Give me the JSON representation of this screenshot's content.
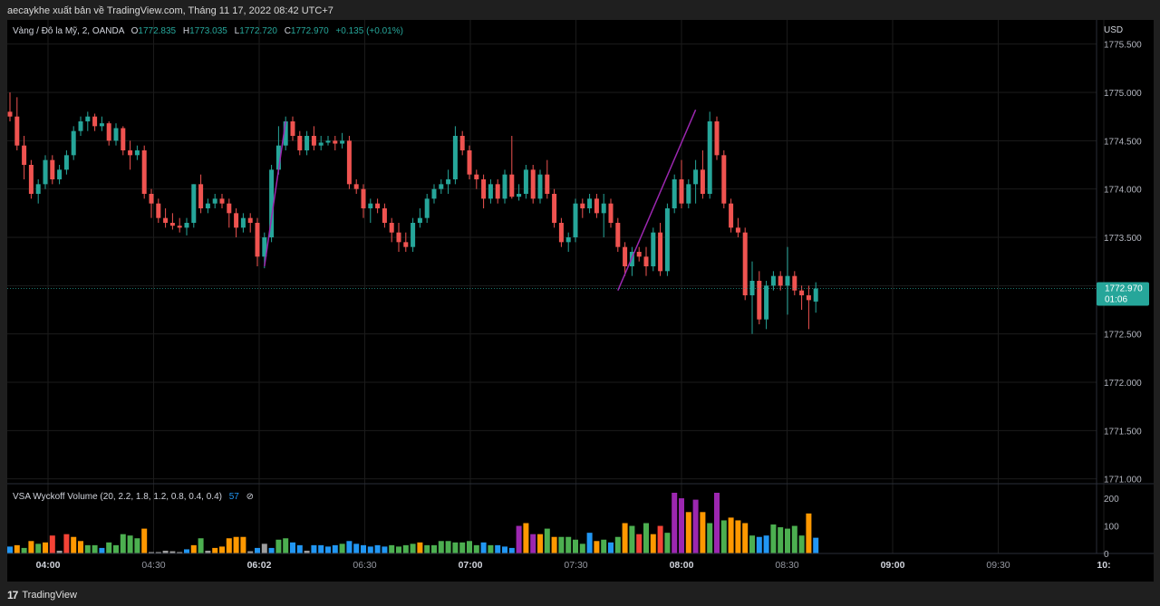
{
  "caption": "aecaykhe xuất bản về TradingView.com, Tháng 11 17, 2022 08:42 UTC+7",
  "footer": {
    "brand": "TradingView",
    "logo_glyph": "17"
  },
  "legend": {
    "symbol": "Vàng / Đô la Mỹ, 2, OANDA",
    "o_label": "O",
    "o_value": "1772.835",
    "h_label": "H",
    "h_value": "1773.035",
    "l_label": "L",
    "l_value": "1772.720",
    "c_label": "C",
    "c_value": "1772.970",
    "change": "+0.135 (+0.01%)"
  },
  "volume_legend": {
    "label": "VSA Wyckoff Volume (20, 2.2, 1.8, 1.2, 0.8, 0.4, 0.4)",
    "value": "57",
    "symbol": "⊘"
  },
  "price_axis": {
    "currency": "USD",
    "ticks": [
      "1775.500",
      "1775.000",
      "1774.500",
      "1774.000",
      "1773.500",
      "1773.000",
      "1772.500",
      "1772.000",
      "1771.500",
      "1771.000"
    ],
    "tick_values": [
      1775.5,
      1775.0,
      1774.5,
      1774.0,
      1773.5,
      1773.0,
      1772.5,
      1772.0,
      1771.5,
      1771.0
    ],
    "last_price_label": "1772.970",
    "countdown": "01:06"
  },
  "volume_axis": {
    "ticks": [
      "200",
      "100",
      "0"
    ],
    "tick_values": [
      200,
      100,
      0
    ]
  },
  "time_axis": {
    "labels": [
      "04:00",
      "04:30",
      "06:02",
      "06:30",
      "07:00",
      "07:30",
      "08:00",
      "08:30",
      "09:00",
      "09:30",
      "10:"
    ],
    "bold": [
      true,
      false,
      true,
      false,
      true,
      false,
      true,
      false,
      true,
      false,
      true
    ]
  },
  "colors": {
    "up": "#26a69a",
    "down": "#ef5350",
    "grid": "#1b1b1b",
    "trendline": "#9c27b0",
    "last_price_bg": "#26a69a",
    "vol_green": "#4caf50",
    "vol_blue": "#2196f3",
    "vol_orange": "#ff9800",
    "vol_red": "#f44336",
    "vol_purple": "#9c27b0",
    "vol_gray": "#9e9e9e"
  },
  "chart_data": {
    "type": "candlestick",
    "title": "Vàng / Đô la Mỹ, 2, OANDA",
    "ylabel": "USD",
    "ylim": [
      1770.95,
      1775.75
    ],
    "volume_ylim": [
      0,
      220
    ],
    "last_price": 1772.97,
    "candles": [
      {
        "o": 1774.8,
        "h": 1775.0,
        "l": 1774.7,
        "c": 1774.75,
        "v": 25
      },
      {
        "o": 1774.75,
        "h": 1774.95,
        "l": 1774.4,
        "c": 1774.45,
        "v": 30
      },
      {
        "o": 1774.45,
        "h": 1774.55,
        "l": 1774.1,
        "c": 1774.25,
        "v": 20
      },
      {
        "o": 1774.25,
        "h": 1774.3,
        "l": 1773.9,
        "c": 1773.95,
        "v": 45
      },
      {
        "o": 1773.95,
        "h": 1774.1,
        "l": 1773.85,
        "c": 1774.05,
        "v": 35
      },
      {
        "o": 1774.05,
        "h": 1774.35,
        "l": 1774.0,
        "c": 1774.3,
        "v": 40
      },
      {
        "o": 1774.3,
        "h": 1774.35,
        "l": 1774.05,
        "c": 1774.1,
        "v": 65
      },
      {
        "o": 1774.1,
        "h": 1774.25,
        "l": 1774.05,
        "c": 1774.2,
        "v": 10
      },
      {
        "o": 1774.2,
        "h": 1774.4,
        "l": 1774.15,
        "c": 1774.35,
        "v": 70
      },
      {
        "o": 1774.35,
        "h": 1774.65,
        "l": 1774.3,
        "c": 1774.6,
        "v": 60
      },
      {
        "o": 1774.6,
        "h": 1774.75,
        "l": 1774.55,
        "c": 1774.7,
        "v": 45
      },
      {
        "o": 1774.7,
        "h": 1774.8,
        "l": 1774.6,
        "c": 1774.75,
        "v": 30
      },
      {
        "o": 1774.75,
        "h": 1774.78,
        "l": 1774.6,
        "c": 1774.65,
        "v": 30
      },
      {
        "o": 1774.65,
        "h": 1774.75,
        "l": 1774.6,
        "c": 1774.68,
        "v": 20
      },
      {
        "o": 1774.68,
        "h": 1774.7,
        "l": 1774.45,
        "c": 1774.5,
        "v": 40
      },
      {
        "o": 1774.5,
        "h": 1774.68,
        "l": 1774.45,
        "c": 1774.63,
        "v": 30
      },
      {
        "o": 1774.63,
        "h": 1774.65,
        "l": 1774.35,
        "c": 1774.4,
        "v": 70
      },
      {
        "o": 1774.4,
        "h": 1774.5,
        "l": 1774.2,
        "c": 1774.35,
        "v": 65
      },
      {
        "o": 1774.35,
        "h": 1774.45,
        "l": 1774.3,
        "c": 1774.4,
        "v": 55
      },
      {
        "o": 1774.4,
        "h": 1774.45,
        "l": 1773.9,
        "c": 1773.95,
        "v": 90
      },
      {
        "o": 1773.95,
        "h": 1774.0,
        "l": 1773.7,
        "c": 1773.85,
        "v": 5
      },
      {
        "o": 1773.85,
        "h": 1773.9,
        "l": 1773.65,
        "c": 1773.7,
        "v": 5
      },
      {
        "o": 1773.7,
        "h": 1773.8,
        "l": 1773.6,
        "c": 1773.65,
        "v": 10
      },
      {
        "o": 1773.65,
        "h": 1773.75,
        "l": 1773.58,
        "c": 1773.62,
        "v": 8
      },
      {
        "o": 1773.62,
        "h": 1773.7,
        "l": 1773.55,
        "c": 1773.6,
        "v": 5
      },
      {
        "o": 1773.6,
        "h": 1773.7,
        "l": 1773.52,
        "c": 1773.65,
        "v": 15
      },
      {
        "o": 1773.65,
        "h": 1774.05,
        "l": 1773.6,
        "c": 1774.05,
        "v": 30
      },
      {
        "o": 1774.05,
        "h": 1774.15,
        "l": 1773.75,
        "c": 1773.8,
        "v": 55
      },
      {
        "o": 1773.8,
        "h": 1773.9,
        "l": 1773.75,
        "c": 1773.85,
        "v": 10
      },
      {
        "o": 1773.85,
        "h": 1773.95,
        "l": 1773.8,
        "c": 1773.9,
        "v": 20
      },
      {
        "o": 1773.9,
        "h": 1773.95,
        "l": 1773.8,
        "c": 1773.85,
        "v": 25
      },
      {
        "o": 1773.85,
        "h": 1773.9,
        "l": 1773.6,
        "c": 1773.75,
        "v": 55
      },
      {
        "o": 1773.75,
        "h": 1773.8,
        "l": 1773.5,
        "c": 1773.6,
        "v": 60
      },
      {
        "o": 1773.6,
        "h": 1773.75,
        "l": 1773.55,
        "c": 1773.7,
        "v": 60
      },
      {
        "o": 1773.7,
        "h": 1773.75,
        "l": 1773.55,
        "c": 1773.65,
        "v": 8
      },
      {
        "o": 1773.65,
        "h": 1773.7,
        "l": 1773.2,
        "c": 1773.3,
        "v": 20
      },
      {
        "o": 1773.3,
        "h": 1773.55,
        "l": 1773.18,
        "c": 1773.5,
        "v": 35
      },
      {
        "o": 1773.5,
        "h": 1774.25,
        "l": 1773.45,
        "c": 1774.2,
        "v": 20
      },
      {
        "o": 1774.2,
        "h": 1774.65,
        "l": 1774.15,
        "c": 1774.45,
        "v": 50
      },
      {
        "o": 1774.45,
        "h": 1774.75,
        "l": 1774.4,
        "c": 1774.7,
        "v": 55
      },
      {
        "o": 1774.7,
        "h": 1774.75,
        "l": 1774.5,
        "c": 1774.55,
        "v": 40
      },
      {
        "o": 1774.55,
        "h": 1774.6,
        "l": 1774.35,
        "c": 1774.4,
        "v": 30
      },
      {
        "o": 1774.4,
        "h": 1774.6,
        "l": 1774.35,
        "c": 1774.55,
        "v": 10
      },
      {
        "o": 1774.55,
        "h": 1774.65,
        "l": 1774.4,
        "c": 1774.45,
        "v": 30
      },
      {
        "o": 1774.45,
        "h": 1774.55,
        "l": 1774.4,
        "c": 1774.48,
        "v": 30
      },
      {
        "o": 1774.48,
        "h": 1774.55,
        "l": 1774.45,
        "c": 1774.5,
        "v": 25
      },
      {
        "o": 1774.5,
        "h": 1774.55,
        "l": 1774.4,
        "c": 1774.47,
        "v": 30
      },
      {
        "o": 1774.47,
        "h": 1774.58,
        "l": 1774.42,
        "c": 1774.5,
        "v": 35
      },
      {
        "o": 1774.5,
        "h": 1774.55,
        "l": 1774.0,
        "c": 1774.05,
        "v": 45
      },
      {
        "o": 1774.05,
        "h": 1774.1,
        "l": 1773.95,
        "c": 1774.0,
        "v": 35
      },
      {
        "o": 1774.0,
        "h": 1774.05,
        "l": 1773.7,
        "c": 1773.8,
        "v": 30
      },
      {
        "o": 1773.8,
        "h": 1773.9,
        "l": 1773.65,
        "c": 1773.85,
        "v": 25
      },
      {
        "o": 1773.85,
        "h": 1773.9,
        "l": 1773.75,
        "c": 1773.8,
        "v": 30
      },
      {
        "o": 1773.8,
        "h": 1773.85,
        "l": 1773.6,
        "c": 1773.65,
        "v": 25
      },
      {
        "o": 1773.65,
        "h": 1773.7,
        "l": 1773.45,
        "c": 1773.55,
        "v": 30
      },
      {
        "o": 1773.55,
        "h": 1773.65,
        "l": 1773.35,
        "c": 1773.45,
        "v": 25
      },
      {
        "o": 1773.45,
        "h": 1773.55,
        "l": 1773.35,
        "c": 1773.4,
        "v": 30
      },
      {
        "o": 1773.4,
        "h": 1773.7,
        "l": 1773.35,
        "c": 1773.65,
        "v": 35
      },
      {
        "o": 1773.65,
        "h": 1773.8,
        "l": 1773.6,
        "c": 1773.7,
        "v": 40
      },
      {
        "o": 1773.7,
        "h": 1773.95,
        "l": 1773.65,
        "c": 1773.9,
        "v": 30
      },
      {
        "o": 1773.9,
        "h": 1774.05,
        "l": 1773.85,
        "c": 1774.0,
        "v": 30
      },
      {
        "o": 1774.0,
        "h": 1774.1,
        "l": 1773.95,
        "c": 1774.05,
        "v": 45
      },
      {
        "o": 1774.05,
        "h": 1774.2,
        "l": 1773.95,
        "c": 1774.1,
        "v": 45
      },
      {
        "o": 1774.1,
        "h": 1774.65,
        "l": 1774.05,
        "c": 1774.55,
        "v": 40
      },
      {
        "o": 1774.55,
        "h": 1774.6,
        "l": 1774.35,
        "c": 1774.4,
        "v": 40
      },
      {
        "o": 1774.4,
        "h": 1774.45,
        "l": 1774.1,
        "c": 1774.15,
        "v": 45
      },
      {
        "o": 1774.15,
        "h": 1774.2,
        "l": 1774.0,
        "c": 1774.1,
        "v": 30
      },
      {
        "o": 1774.1,
        "h": 1774.15,
        "l": 1773.8,
        "c": 1773.9,
        "v": 40
      },
      {
        "o": 1773.9,
        "h": 1774.1,
        "l": 1773.85,
        "c": 1774.05,
        "v": 30
      },
      {
        "o": 1774.05,
        "h": 1774.1,
        "l": 1773.85,
        "c": 1773.9,
        "v": 30
      },
      {
        "o": 1773.9,
        "h": 1774.2,
        "l": 1773.85,
        "c": 1774.15,
        "v": 25
      },
      {
        "o": 1774.15,
        "h": 1774.55,
        "l": 1773.9,
        "c": 1773.92,
        "v": 20
      },
      {
        "o": 1773.92,
        "h": 1774.05,
        "l": 1773.88,
        "c": 1773.95,
        "v": 100
      },
      {
        "o": 1773.95,
        "h": 1774.25,
        "l": 1773.9,
        "c": 1774.2,
        "v": 110
      },
      {
        "o": 1774.2,
        "h": 1774.25,
        "l": 1773.85,
        "c": 1773.9,
        "v": 70
      },
      {
        "o": 1773.9,
        "h": 1774.2,
        "l": 1773.85,
        "c": 1774.15,
        "v": 70
      },
      {
        "o": 1774.15,
        "h": 1774.3,
        "l": 1773.9,
        "c": 1773.95,
        "v": 90
      },
      {
        "o": 1773.95,
        "h": 1774.0,
        "l": 1773.6,
        "c": 1773.65,
        "v": 60
      },
      {
        "o": 1773.65,
        "h": 1773.7,
        "l": 1773.4,
        "c": 1773.45,
        "v": 60
      },
      {
        "o": 1773.45,
        "h": 1773.55,
        "l": 1773.35,
        "c": 1773.5,
        "v": 60
      },
      {
        "o": 1773.5,
        "h": 1773.9,
        "l": 1773.45,
        "c": 1773.85,
        "v": 50
      },
      {
        "o": 1773.85,
        "h": 1773.9,
        "l": 1773.7,
        "c": 1773.8,
        "v": 35
      },
      {
        "o": 1773.8,
        "h": 1773.95,
        "l": 1773.75,
        "c": 1773.9,
        "v": 75
      },
      {
        "o": 1773.9,
        "h": 1773.95,
        "l": 1773.7,
        "c": 1773.75,
        "v": 45
      },
      {
        "o": 1773.75,
        "h": 1773.95,
        "l": 1773.5,
        "c": 1773.85,
        "v": 50
      },
      {
        "o": 1773.85,
        "h": 1773.9,
        "l": 1773.6,
        "c": 1773.65,
        "v": 40
      },
      {
        "o": 1773.65,
        "h": 1773.7,
        "l": 1773.35,
        "c": 1773.4,
        "v": 60
      },
      {
        "o": 1773.4,
        "h": 1773.45,
        "l": 1773.1,
        "c": 1773.2,
        "v": 110
      },
      {
        "o": 1773.2,
        "h": 1773.4,
        "l": 1773.1,
        "c": 1773.35,
        "v": 100
      },
      {
        "o": 1773.35,
        "h": 1773.4,
        "l": 1773.25,
        "c": 1773.3,
        "v": 70
      },
      {
        "o": 1773.3,
        "h": 1773.4,
        "l": 1773.1,
        "c": 1773.2,
        "v": 110
      },
      {
        "o": 1773.2,
        "h": 1773.6,
        "l": 1773.15,
        "c": 1773.55,
        "v": 70
      },
      {
        "o": 1773.55,
        "h": 1773.65,
        "l": 1773.1,
        "c": 1773.15,
        "v": 100
      },
      {
        "o": 1773.15,
        "h": 1773.85,
        "l": 1773.1,
        "c": 1773.8,
        "v": 75
      },
      {
        "o": 1773.8,
        "h": 1774.15,
        "l": 1773.75,
        "c": 1774.1,
        "v": 220
      },
      {
        "o": 1774.1,
        "h": 1774.3,
        "l": 1773.8,
        "c": 1773.85,
        "v": 200
      },
      {
        "o": 1773.85,
        "h": 1774.1,
        "l": 1773.8,
        "c": 1774.05,
        "v": 150
      },
      {
        "o": 1774.05,
        "h": 1774.3,
        "l": 1773.85,
        "c": 1774.2,
        "v": 195
      },
      {
        "o": 1774.2,
        "h": 1774.4,
        "l": 1773.9,
        "c": 1773.95,
        "v": 150
      },
      {
        "o": 1773.95,
        "h": 1774.8,
        "l": 1773.9,
        "c": 1774.7,
        "v": 110
      },
      {
        "o": 1774.7,
        "h": 1774.75,
        "l": 1774.3,
        "c": 1774.35,
        "v": 220
      },
      {
        "o": 1774.35,
        "h": 1774.4,
        "l": 1773.8,
        "c": 1773.85,
        "v": 120
      },
      {
        "o": 1773.85,
        "h": 1773.9,
        "l": 1773.55,
        "c": 1773.6,
        "v": 130
      },
      {
        "o": 1773.6,
        "h": 1773.7,
        "l": 1773.5,
        "c": 1773.55,
        "v": 120
      },
      {
        "o": 1773.55,
        "h": 1773.6,
        "l": 1772.85,
        "c": 1772.9,
        "v": 110
      },
      {
        "o": 1772.9,
        "h": 1773.25,
        "l": 1772.5,
        "c": 1773.05,
        "v": 65
      },
      {
        "o": 1773.05,
        "h": 1773.15,
        "l": 1772.6,
        "c": 1772.65,
        "v": 60
      },
      {
        "o": 1772.65,
        "h": 1773.05,
        "l": 1772.55,
        "c": 1773.0,
        "v": 65
      },
      {
        "o": 1773.0,
        "h": 1773.15,
        "l": 1772.95,
        "c": 1773.1,
        "v": 105
      },
      {
        "o": 1773.1,
        "h": 1773.15,
        "l": 1772.95,
        "c": 1773.0,
        "v": 95
      },
      {
        "o": 1773.0,
        "h": 1773.4,
        "l": 1772.7,
        "c": 1773.1,
        "v": 90
      },
      {
        "o": 1773.1,
        "h": 1773.15,
        "l": 1772.9,
        "c": 1772.95,
        "v": 100
      },
      {
        "o": 1772.95,
        "h": 1773.0,
        "l": 1772.75,
        "c": 1772.9,
        "v": 65
      },
      {
        "o": 1772.9,
        "h": 1773.0,
        "l": 1772.55,
        "c": 1772.85,
        "v": 145
      },
      {
        "o": 1772.835,
        "h": 1773.035,
        "l": 1772.72,
        "c": 1772.97,
        "v": 57
      }
    ],
    "volume_colors": [
      "vol_blue",
      "vol_orange",
      "vol_green",
      "vol_orange",
      "vol_green",
      "vol_orange",
      "vol_red",
      "vol_gray",
      "vol_red",
      "vol_orange",
      "vol_orange",
      "vol_green",
      "vol_green",
      "vol_blue",
      "vol_green",
      "vol_green",
      "vol_green",
      "vol_green",
      "vol_green",
      "vol_orange",
      "vol_gray",
      "vol_gray",
      "vol_gray",
      "vol_gray",
      "vol_gray",
      "vol_blue",
      "vol_orange",
      "vol_green",
      "vol_gray",
      "vol_orange",
      "vol_orange",
      "vol_orange",
      "vol_orange",
      "vol_orange",
      "vol_gray",
      "vol_blue",
      "vol_gray",
      "vol_blue",
      "vol_green",
      "vol_green",
      "vol_blue",
      "vol_blue",
      "vol_gray",
      "vol_blue",
      "vol_blue",
      "vol_blue",
      "vol_blue",
      "vol_green",
      "vol_blue",
      "vol_blue",
      "vol_blue",
      "vol_blue",
      "vol_blue",
      "vol_blue",
      "vol_green",
      "vol_green",
      "vol_green",
      "vol_green",
      "vol_orange",
      "vol_green",
      "vol_green",
      "vol_green",
      "vol_green",
      "vol_green",
      "vol_green",
      "vol_green",
      "vol_green",
      "vol_blue",
      "vol_green",
      "vol_blue",
      "vol_blue",
      "vol_blue",
      "vol_purple",
      "vol_orange",
      "vol_purple",
      "vol_orange",
      "vol_green",
      "vol_orange",
      "vol_green",
      "vol_green",
      "vol_green",
      "vol_green",
      "vol_blue",
      "vol_orange",
      "vol_green",
      "vol_blue",
      "vol_green",
      "vol_orange",
      "vol_green",
      "vol_red",
      "vol_green",
      "vol_orange",
      "vol_red",
      "vol_green",
      "vol_purple",
      "vol_purple",
      "vol_orange",
      "vol_purple",
      "vol_orange",
      "vol_green",
      "vol_purple",
      "vol_green",
      "vol_orange",
      "vol_orange",
      "vol_orange",
      "vol_green",
      "vol_blue",
      "vol_blue",
      "vol_green",
      "vol_green",
      "vol_green",
      "vol_green",
      "vol_green",
      "vol_orange",
      "vol_blue"
    ],
    "trendlines": [
      {
        "from": {
          "bar": 36,
          "price": 1773.2
        },
        "to": {
          "bar": 39,
          "price": 1774.7
        }
      },
      {
        "from": {
          "bar": 86,
          "price": 1772.95
        },
        "to": {
          "bar": 97,
          "price": 1774.82
        }
      }
    ]
  }
}
